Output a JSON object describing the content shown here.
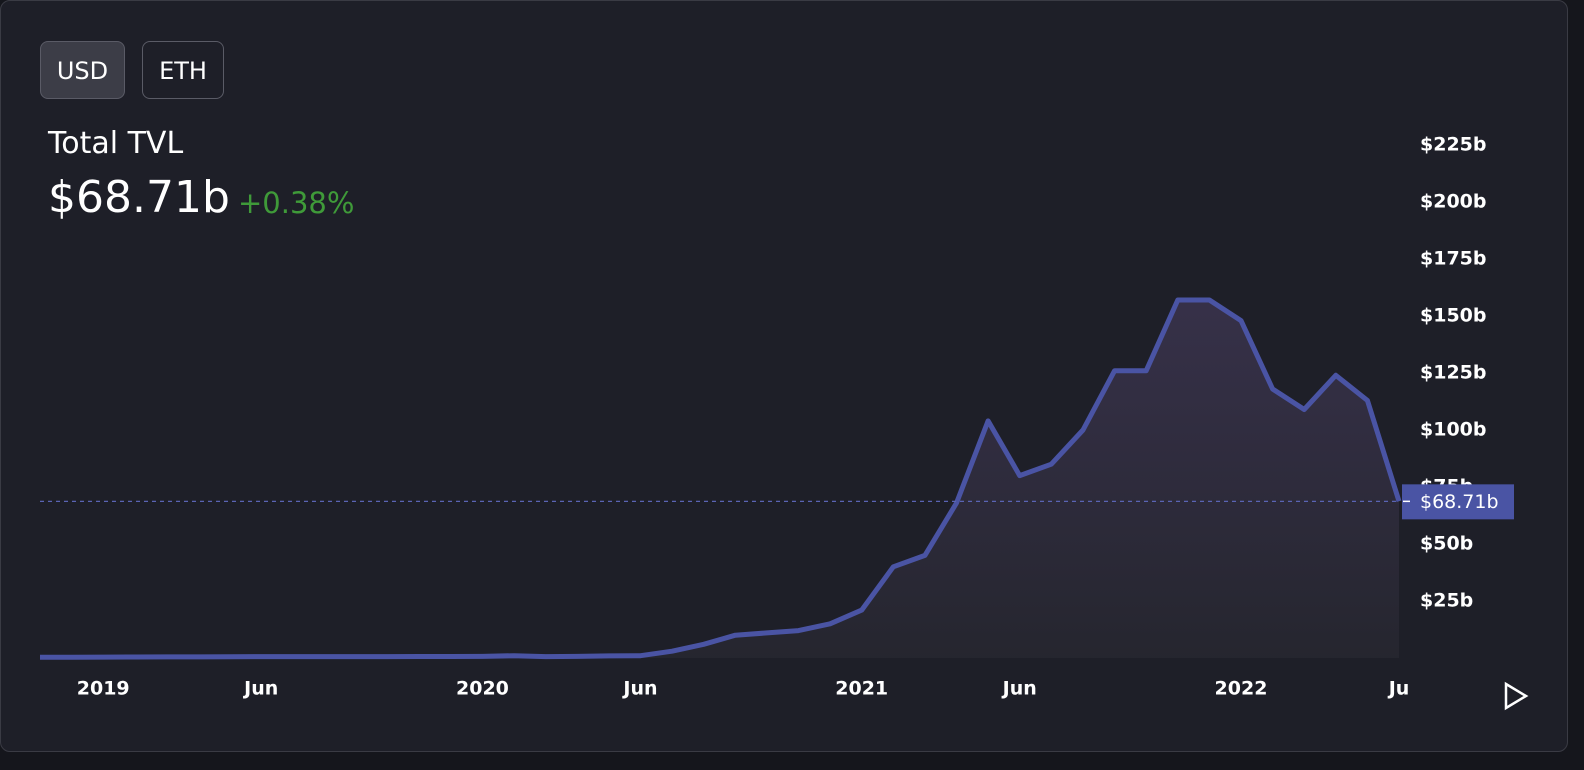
{
  "toggle": {
    "options": [
      "USD",
      "ETH"
    ],
    "active": 0
  },
  "chart_data": {
    "type": "area",
    "title": "Total TVL",
    "latest_label": "$68.71b",
    "change": "+0.38%",
    "color": "#4a54a4",
    "x": [
      "2018-11",
      "2018-12",
      "2019-01",
      "2019-02",
      "2019-03",
      "2019-04",
      "2019-05",
      "2019-06",
      "2019-07",
      "2019-08",
      "2019-09",
      "2019-10",
      "2019-11",
      "2019-12",
      "2020-01",
      "2020-02",
      "2020-03",
      "2020-04",
      "2020-05",
      "2020-06",
      "2020-07",
      "2020-08",
      "2020-09",
      "2020-10",
      "2020-11",
      "2020-12",
      "2021-01",
      "2021-02",
      "2021-03",
      "2021-04",
      "2021-05",
      "2021-06",
      "2021-07",
      "2021-08",
      "2021-09",
      "2021-10",
      "2021-11",
      "2021-12",
      "2022-01",
      "2022-02",
      "2022-03",
      "2022-04",
      "2022-05",
      "2022-06"
    ],
    "values": [
      0.3,
      0.3,
      0.4,
      0.45,
      0.5,
      0.5,
      0.55,
      0.6,
      0.6,
      0.6,
      0.6,
      0.6,
      0.65,
      0.65,
      0.7,
      1.0,
      0.6,
      0.7,
      0.9,
      1.0,
      3,
      6,
      10,
      11,
      12,
      15,
      21,
      40,
      45,
      68,
      104,
      80,
      85,
      100,
      126,
      126,
      157,
      157,
      148,
      118,
      109,
      124,
      113,
      68.71
    ],
    "xlim": [
      "2018-11",
      "2022-06"
    ],
    "xticks": [
      {
        "value": "2019-01",
        "label": "2019"
      },
      {
        "value": "2019-06",
        "label": "Jun"
      },
      {
        "value": "2020-01",
        "label": "2020"
      },
      {
        "value": "2020-06",
        "label": "Jun"
      },
      {
        "value": "2021-01",
        "label": "2021"
      },
      {
        "value": "2021-06",
        "label": "Jun"
      },
      {
        "value": "2022-01",
        "label": "2022"
      },
      {
        "value": "2022-06",
        "label": "Ju"
      }
    ],
    "ylim": [
      0,
      230
    ],
    "yticks": [
      {
        "value": 25,
        "label": "$25b"
      },
      {
        "value": 50,
        "label": "$50b"
      },
      {
        "value": 75,
        "label": "$75b"
      },
      {
        "value": 100,
        "label": "$100b"
      },
      {
        "value": 125,
        "label": "$125b"
      },
      {
        "value": 150,
        "label": "$150b"
      },
      {
        "value": 175,
        "label": "$175b"
      },
      {
        "value": 200,
        "label": "$200b"
      },
      {
        "value": 225,
        "label": "$225b"
      }
    ]
  }
}
